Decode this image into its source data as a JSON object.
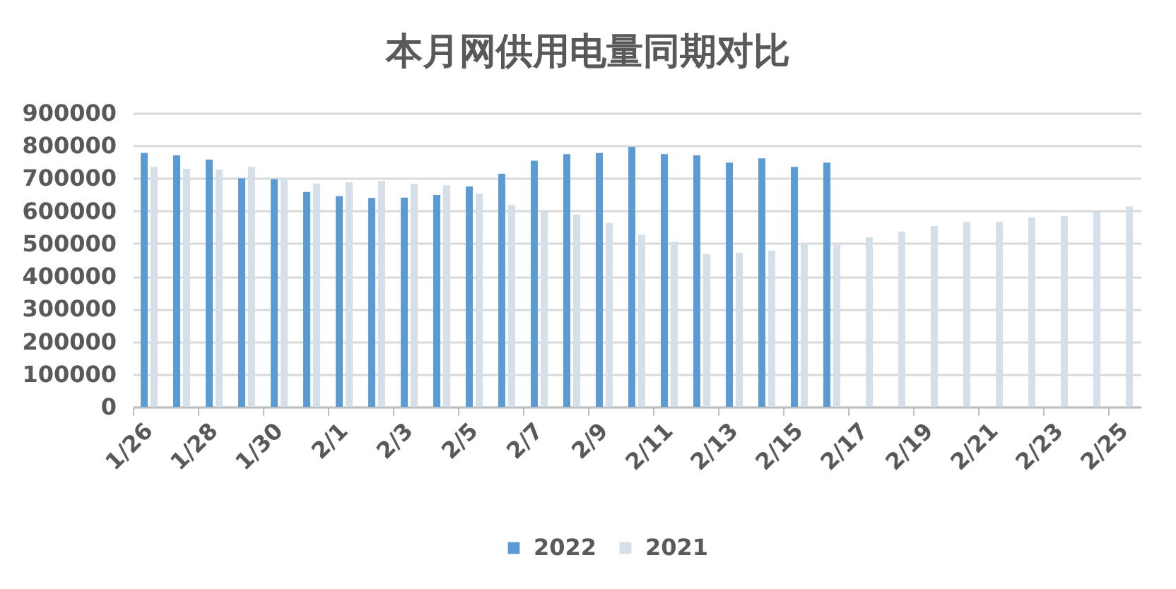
{
  "chart_data": {
    "type": "bar",
    "title": "本月网供用电量同期对比",
    "categories": [
      "1/26",
      null,
      "1/28",
      null,
      "1/30",
      null,
      "2/1",
      null,
      "2/3",
      null,
      "2/5",
      null,
      "2/7",
      null,
      "2/9",
      null,
      "2/11",
      null,
      "2/13",
      null,
      "2/15",
      null,
      "2/17",
      null,
      "2/19",
      null,
      "2/21",
      null,
      "2/23",
      null,
      "2/25"
    ],
    "series": [
      {
        "name": "2022",
        "color": "#5b9bd5",
        "values": [
          778000,
          770000,
          757000,
          700000,
          697000,
          658000,
          645000,
          640000,
          641000,
          649000,
          675000,
          714000,
          754000,
          774000,
          778000,
          796000,
          774000,
          770000,
          748000,
          761000,
          735000,
          748000,
          null,
          null,
          null,
          null,
          null,
          null,
          null,
          null,
          null
        ]
      },
      {
        "name": "2021",
        "color": "#d5dfe9",
        "values": [
          735000,
          729000,
          727000,
          735000,
          700000,
          684000,
          688000,
          692000,
          683000,
          679000,
          653000,
          619000,
          597000,
          589000,
          563000,
          527000,
          505000,
          468000,
          472000,
          478000,
          501000,
          496000,
          519000,
          537000,
          554000,
          567000,
          567000,
          580000,
          584000,
          597000,
          614000
        ]
      }
    ],
    "ylim": [
      0,
      900000
    ],
    "yticks": [
      0,
      100000,
      200000,
      300000,
      400000,
      500000,
      600000,
      700000,
      800000,
      900000
    ],
    "grid": "y",
    "legend": "bottom"
  }
}
